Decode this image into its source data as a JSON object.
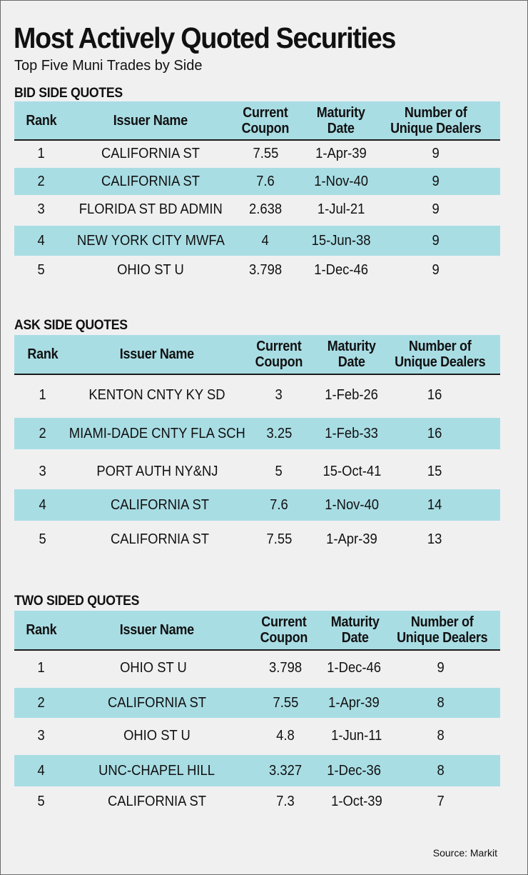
{
  "title": "Most Actively Quoted Securities",
  "subtitle": "Top Five Muni Trades by Side",
  "colors": {
    "row_shade": "#a9dde4",
    "background": "#f0f0f1"
  },
  "headers": {
    "rank": "Rank",
    "issuer": "Issuer Name",
    "coupon": "Current\nCoupon",
    "maturity": "Maturity\nDate",
    "dealers": "Number of\nUnique Dealers"
  },
  "sections": [
    {
      "title": "BID SIDE QUOTES",
      "rows": [
        {
          "rank": "1",
          "issuer": "CALIFORNIA ST",
          "coupon": "7.55",
          "maturity": "1-Apr-39",
          "dealers": "9"
        },
        {
          "rank": "2",
          "issuer": "CALIFORNIA ST",
          "coupon": "7.6",
          "maturity": "1-Nov-40",
          "dealers": "9"
        },
        {
          "rank": "3",
          "issuer": "FLORIDA ST BD ADMIN",
          "coupon": "2.638",
          "maturity": "1-Jul-21",
          "dealers": "9"
        },
        {
          "rank": "4",
          "issuer": "NEW YORK CITY MWFA",
          "coupon": "4",
          "maturity": "15-Jun-38",
          "dealers": "9"
        },
        {
          "rank": "5",
          "issuer": "OHIO ST U",
          "coupon": "3.798",
          "maturity": "1-Dec-46",
          "dealers": "9"
        }
      ]
    },
    {
      "title": "ASK SIDE QUOTES",
      "rows": [
        {
          "rank": "1",
          "issuer": "KENTON CNTY KY SD",
          "coupon": "3",
          "maturity": "1-Feb-26",
          "dealers": "16"
        },
        {
          "rank": "2",
          "issuer": "MIAMI-DADE CNTY FLA SCH",
          "coupon": "3.25",
          "maturity": "1-Feb-33",
          "dealers": "16"
        },
        {
          "rank": "3",
          "issuer": "PORT AUTH NY&NJ",
          "coupon": "5",
          "maturity": "15-Oct-41",
          "dealers": "15"
        },
        {
          "rank": "4",
          "issuer": "CALIFORNIA ST",
          "coupon": "7.6",
          "maturity": "1-Nov-40",
          "dealers": "14"
        },
        {
          "rank": "5",
          "issuer": "CALIFORNIA ST",
          "coupon": "7.55",
          "maturity": "1-Apr-39",
          "dealers": "13"
        }
      ]
    },
    {
      "title": "TWO SIDED QUOTES",
      "rows": [
        {
          "rank": "1",
          "issuer": "OHIO ST U",
          "coupon": "3.798",
          "maturity": "1-Dec-46",
          "dealers": "9"
        },
        {
          "rank": "2",
          "issuer": "CALIFORNIA ST",
          "coupon": "7.55",
          "maturity": "1-Apr-39",
          "dealers": "8"
        },
        {
          "rank": "3",
          "issuer": "OHIO ST U",
          "coupon": "4.8",
          "maturity": "1-Jun-11",
          "dealers": "8"
        },
        {
          "rank": "4",
          "issuer": "UNC-CHAPEL HILL",
          "coupon": "3.327",
          "maturity": "1-Dec-36",
          "dealers": "8"
        },
        {
          "rank": "5",
          "issuer": "CALIFORNIA ST",
          "coupon": "7.3",
          "maturity": "1-Oct-39",
          "dealers": "7"
        }
      ]
    }
  ],
  "source": "Source: Markit"
}
